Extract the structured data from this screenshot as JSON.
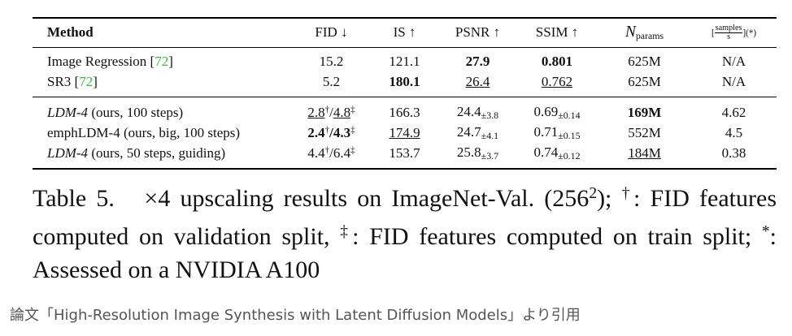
{
  "table": {
    "header": [
      [
        {
          "text": "Method",
          "style": [
            "bold"
          ]
        }
      ],
      [
        {
          "text": "FID ↓"
        }
      ],
      [
        {
          "text": "IS ↑"
        }
      ],
      [
        {
          "text": "PSNR ↑"
        }
      ],
      [
        {
          "text": "SSIM ↑"
        }
      ],
      [
        {
          "text": "N",
          "style": [
            "italic",
            "big"
          ]
        },
        {
          "text": "params",
          "style": [
            "sub"
          ]
        }
      ],
      [
        {
          "text": "[",
          "style": [
            "small"
          ]
        },
        {
          "text": "samples",
          "style": [
            "num"
          ]
        },
        {
          "text": "s",
          "style": [
            "den"
          ]
        },
        {
          "text": "](*)",
          "style": [
            "small"
          ]
        }
      ]
    ],
    "body": [
      [
        [
          [
            {
              "text": "Image Regression ["
            },
            {
              "text": "72",
              "style": [
                "cite"
              ]
            },
            {
              "text": "]"
            }
          ],
          [
            {
              "text": "15.2"
            }
          ],
          [
            {
              "text": "121.1"
            }
          ],
          [
            {
              "text": "27.9",
              "style": [
                "bold"
              ]
            }
          ],
          [
            {
              "text": "0.801",
              "style": [
                "bold"
              ]
            }
          ],
          [
            {
              "text": "625M"
            }
          ],
          [
            {
              "text": "N/A"
            }
          ]
        ],
        [
          [
            {
              "text": "SR3 ["
            },
            {
              "text": "72",
              "style": [
                "cite"
              ]
            },
            {
              "text": "]"
            }
          ],
          [
            {
              "text": "5.2"
            }
          ],
          [
            {
              "text": "180.1",
              "style": [
                "bold"
              ]
            }
          ],
          [
            {
              "text": "26.4",
              "style": [
                "underline"
              ]
            }
          ],
          [
            {
              "text": "0.762",
              "style": [
                "underline"
              ]
            }
          ],
          [
            {
              "text": "625M"
            }
          ],
          [
            {
              "text": "N/A"
            }
          ]
        ]
      ],
      [
        [
          [
            {
              "text": "LDM-4",
              "style": [
                "italic"
              ]
            },
            {
              "text": " (ours, 100 steps)"
            }
          ],
          [
            {
              "text": "2.8",
              "style": [
                "underline"
              ]
            },
            {
              "text": "†",
              "style": [
                "sup"
              ]
            },
            {
              "text": "/"
            },
            {
              "text": "4.8",
              "style": [
                "underline"
              ]
            },
            {
              "text": "‡",
              "style": [
                "sup"
              ]
            }
          ],
          [
            {
              "text": "166.3"
            }
          ],
          [
            {
              "text": "24.4"
            },
            {
              "text": "±3.8",
              "style": [
                "sub"
              ]
            }
          ],
          [
            {
              "text": "0.69"
            },
            {
              "text": "±0.14",
              "style": [
                "sub"
              ]
            }
          ],
          [
            {
              "text": "169M",
              "style": [
                "bold"
              ]
            }
          ],
          [
            {
              "text": "4.62"
            }
          ]
        ],
        [
          [
            {
              "text": "emphLDM-4 (ours, big, 100 steps)"
            }
          ],
          [
            {
              "text": "2.4",
              "style": [
                "bold"
              ]
            },
            {
              "text": "†",
              "style": [
                "sup"
              ]
            },
            {
              "text": "/",
              "style": [
                "bold"
              ]
            },
            {
              "text": "4.3",
              "style": [
                "bold"
              ]
            },
            {
              "text": "‡",
              "style": [
                "sup"
              ]
            }
          ],
          [
            {
              "text": "174.9",
              "style": [
                "underline"
              ]
            }
          ],
          [
            {
              "text": "24.7"
            },
            {
              "text": "±4.1",
              "style": [
                "sub"
              ]
            }
          ],
          [
            {
              "text": "0.71"
            },
            {
              "text": "±0.15",
              "style": [
                "sub"
              ]
            }
          ],
          [
            {
              "text": "552M"
            }
          ],
          [
            {
              "text": "4.5"
            }
          ]
        ],
        [
          [
            {
              "text": "LDM-4",
              "style": [
                "italic"
              ]
            },
            {
              "text": " (ours, 50 steps, guiding)"
            }
          ],
          [
            {
              "text": "4.4"
            },
            {
              "text": "†",
              "style": [
                "sup"
              ]
            },
            {
              "text": "/6.4"
            },
            {
              "text": "‡",
              "style": [
                "sup"
              ]
            }
          ],
          [
            {
              "text": "153.7"
            }
          ],
          [
            {
              "text": "25.8"
            },
            {
              "text": "±3.7",
              "style": [
                "sub"
              ]
            }
          ],
          [
            {
              "text": "0.74"
            },
            {
              "text": "±0.12",
              "style": [
                "sub"
              ]
            }
          ],
          [
            {
              "text": "184M",
              "style": [
                "underline"
              ]
            }
          ],
          [
            {
              "text": "0.38"
            }
          ]
        ]
      ]
    ]
  },
  "caption": [
    {
      "text": "Table 5.   ×4 upscaling results on ImageNet-Val. (256"
    },
    {
      "text": "2",
      "style": [
        "sup"
      ]
    },
    {
      "text": "); "
    },
    {
      "text": "†",
      "style": [
        "sup"
      ]
    },
    {
      "text": ": FID features computed on validation split, "
    },
    {
      "text": "‡",
      "style": [
        "sup"
      ]
    },
    {
      "text": ": FID features computed on train split; "
    },
    {
      "text": "*",
      "style": [
        "sup"
      ]
    },
    {
      "text": ": Assessed on a NVIDIA A100"
    }
  ],
  "footer": "論文「High-Resolution Image Synthesis with Latent Diffusion Models」より引用"
}
